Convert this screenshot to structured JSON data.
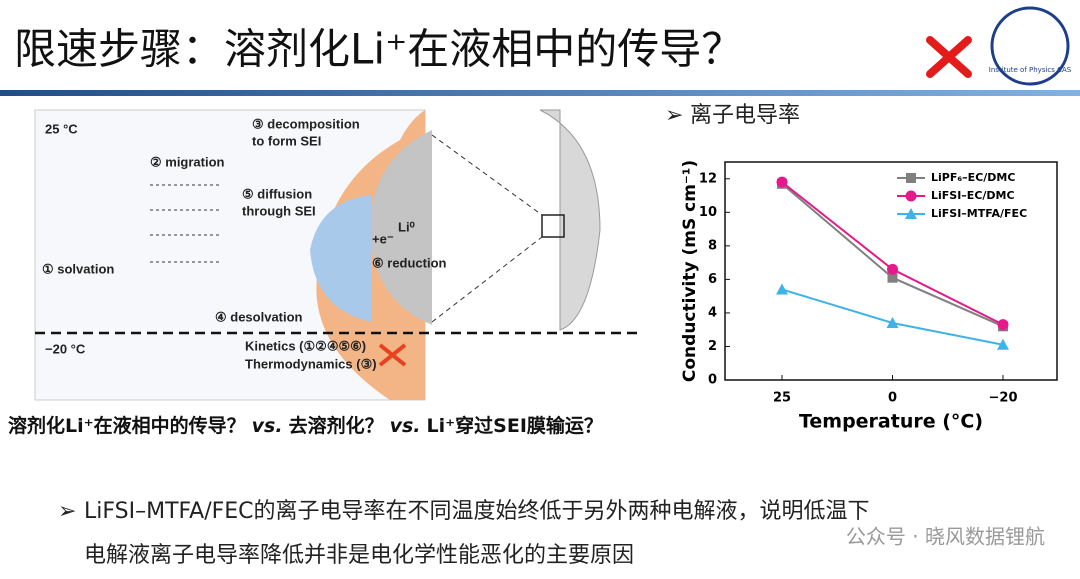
{
  "header": {
    "title": "限速步骤：溶剂化Li⁺在液相中的传导？",
    "logo_text": "Institute of Physics CAS"
  },
  "diagram": {
    "labels": [
      "25 °C",
      "② migration",
      "③ decomposition",
      "to form SEI",
      "⑤ diffusion",
      "through SEI",
      "① solvation",
      "+e⁻",
      "Li⁰",
      "⑥ reduction",
      "④ desolvation",
      "−20 °C",
      "Kinetics (①②④⑤⑥)",
      "Thermodynamics (③)"
    ],
    "caption": [
      "溶剂化Li⁺在液相中的传导？",
      "vs.",
      "去溶剂化？",
      "vs.",
      "Li⁺穿过SEI膜输运？"
    ]
  },
  "bullet": "离子电导率",
  "chart_data": {
    "type": "line",
    "x_label": "Temperature (°C)",
    "y_label": "Conductivity (mS cm⁻¹)",
    "categories": [
      "25",
      "0",
      "−20"
    ],
    "series": [
      {
        "name": "LiPF₆–EC/DMC",
        "color": "#808080",
        "marker": "square",
        "values": [
          11.7,
          6.1,
          3.2
        ]
      },
      {
        "name": "LiFSI–EC/DMC",
        "color": "#e6198c",
        "marker": "circle",
        "values": [
          11.8,
          6.6,
          3.3
        ]
      },
      {
        "name": "LiFSI–MTFA/FEC",
        "color": "#3fb3e8",
        "marker": "triangle",
        "values": [
          5.4,
          3.4,
          2.1
        ]
      }
    ],
    "ylim": [
      0,
      13
    ],
    "yticks": [
      0,
      2,
      4,
      6,
      8,
      10,
      12
    ],
    "grid": false,
    "legend": "top-right"
  },
  "conclusion": [
    "LiFSI–MTFA/FEC的离子电导率在不同温度始终低于另外两种电解液，说明低温下",
    "电解液离子电导率降低并非是电化学性能恶化的主要原因"
  ],
  "watermark": "公众号 · 晓风数据锂航"
}
